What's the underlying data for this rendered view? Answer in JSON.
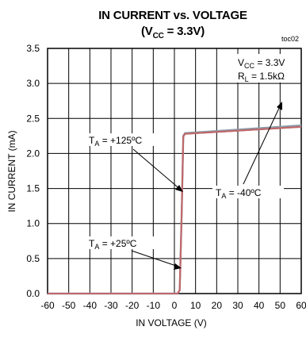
{
  "chart_data": {
    "type": "line",
    "title_line1": "IN CURRENT vs. VOLTAGE",
    "title_line2_prefix": "(V",
    "title_line2_sub": "CC",
    "title_line2_suffix": " = 3.3V)",
    "tag": "toc02",
    "xlabel": "IN VOLTAGE (V)",
    "ylabel": "IN CURRENT (mA)",
    "xlim": [
      -60,
      60
    ],
    "ylim": [
      0,
      3.5
    ],
    "xticks": [
      "-60",
      "-50",
      "-40",
      "-30",
      "-20",
      "-10",
      "0",
      "10",
      "20",
      "30",
      "40",
      "50",
      "60"
    ],
    "yticks": [
      "0.0",
      "0.5",
      "1.0",
      "1.5",
      "2.0",
      "2.5",
      "3.0",
      "3.5"
    ],
    "grid": true,
    "conditions": {
      "vcc_prefix": "V",
      "vcc_sub": "CC",
      "vcc_suffix": " = 3.3V",
      "rl_prefix": "R",
      "rl_sub": "L",
      "rl_suffix": " = 1.5kΩ"
    },
    "series": [
      {
        "name": "TA = +125°C",
        "color": "#8a9da8",
        "x": [
          -60,
          1.5,
          2.5,
          3.5,
          4.2,
          5,
          60
        ],
        "y": [
          0,
          0,
          0.05,
          1.2,
          2.25,
          2.29,
          2.4
        ]
      },
      {
        "name": "TA = -40°C",
        "color": "#c0676a",
        "x": [
          -60,
          1.5,
          2.5,
          3.5,
          4.2,
          5,
          60
        ],
        "y": [
          0,
          0,
          0.05,
          1.2,
          2.24,
          2.28,
          2.38
        ]
      },
      {
        "name": "TA = +25°C",
        "color": "#c0676a",
        "x": [
          -60,
          1.5,
          2.5,
          3.5,
          4.2,
          5,
          60
        ],
        "y": [
          0,
          0,
          0.05,
          1.2,
          2.24,
          2.28,
          2.38
        ]
      }
    ],
    "annotations": [
      {
        "prefix": "T",
        "sub": "A",
        "suffix": " = +125ºC"
      },
      {
        "prefix": "T",
        "sub": "A",
        "suffix": " = -40ºC"
      },
      {
        "prefix": "T",
        "sub": "A",
        "suffix": " = +25ºC"
      }
    ]
  }
}
